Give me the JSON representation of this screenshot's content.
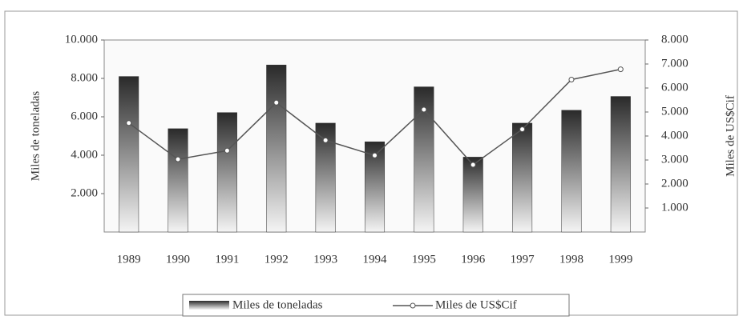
{
  "chart_data": {
    "type": "bar_line",
    "categories": [
      "1989",
      "1990",
      "1991",
      "1992",
      "1993",
      "1994",
      "1995",
      "1996",
      "1997",
      "1998",
      "1999"
    ],
    "series": [
      {
        "name": "Miles de toneladas",
        "color": "#333333",
        "values": [
          8100,
          5380,
          6220,
          8700,
          5670,
          4700,
          7560,
          3900,
          5670,
          6340,
          7060
        ]
      },
      {
        "name": "Miles de US$Cif",
        "color": "#555555",
        "axis": "y2",
        "values": [
          4540,
          3030,
          3390,
          5390,
          3820,
          3190,
          5100,
          2800,
          4280,
          6350,
          6780
        ]
      }
    ],
    "ylabel": "Miles de toneladas",
    "y2label": "Miles de US$Cif",
    "ylim": [
      0,
      10000
    ],
    "yticks": [
      {
        "value": 2000,
        "label": "2.000"
      },
      {
        "value": 4000,
        "label": "4.000"
      },
      {
        "value": 6000,
        "label": "6.000"
      },
      {
        "value": 8000,
        "label": "8.000"
      },
      {
        "value": 10000,
        "label": "10.000"
      }
    ],
    "y2lim": [
      0,
      8000
    ],
    "y2ticks": [
      {
        "value": 1000,
        "label": "1.000"
      },
      {
        "value": 2000,
        "label": "2.000"
      },
      {
        "value": 3000,
        "label": "3.000"
      },
      {
        "value": 4000,
        "label": "4.000"
      },
      {
        "value": 5000,
        "label": "5.000"
      },
      {
        "value": 6000,
        "label": "6.000"
      },
      {
        "value": 7000,
        "label": "7.000"
      },
      {
        "value": 8000,
        "label": "8.000"
      }
    ],
    "legend": "bottom"
  }
}
